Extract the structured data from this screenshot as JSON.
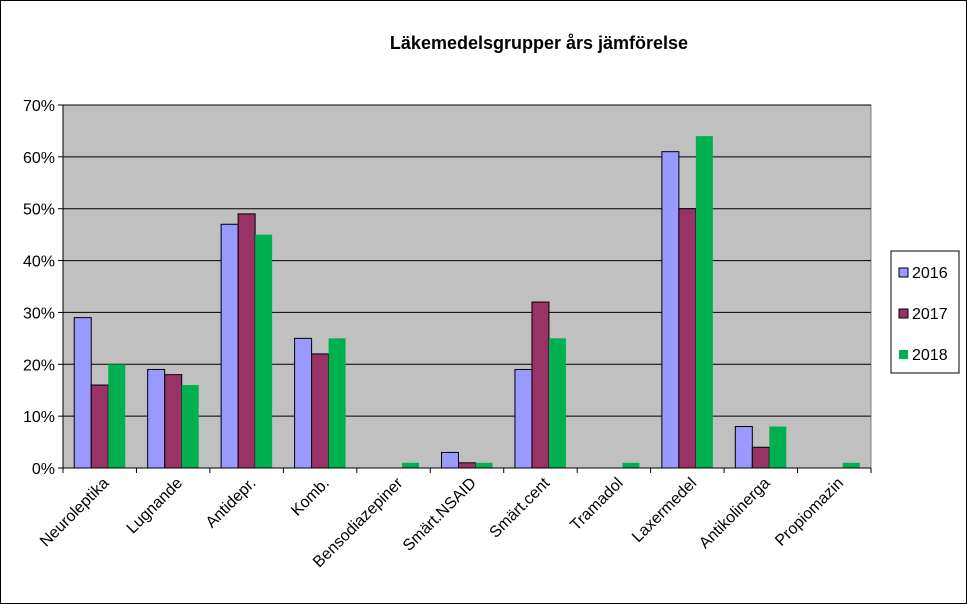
{
  "chart_data": {
    "type": "bar",
    "title": "Läkemedelsgrupper års jämförelse",
    "xlabel": "",
    "ylabel": "",
    "ylim": [
      0,
      70
    ],
    "yticks": [
      0,
      10,
      20,
      30,
      40,
      50,
      60,
      70
    ],
    "ytick_labels": [
      "0%",
      "10%",
      "20%",
      "30%",
      "40%",
      "50%",
      "60%",
      "70%"
    ],
    "grid": true,
    "legend_position": "right",
    "categories": [
      "Neuroleptika",
      "Lugnande",
      "Antidepr.",
      "Komb.",
      "Bensodiazepiner",
      "Smärt.NSAID",
      "Smärt.cent",
      "Tramadol",
      "Laxermedel",
      "Antikolinerga",
      "Propiomazin"
    ],
    "series": [
      {
        "name": "2016",
        "color": "#9999ff",
        "values": [
          29,
          19,
          47,
          25,
          0,
          3,
          19,
          0,
          61,
          8,
          0
        ]
      },
      {
        "name": "2017",
        "color": "#993366",
        "values": [
          16,
          18,
          49,
          22,
          0,
          1,
          32,
          0,
          50,
          4,
          0
        ]
      },
      {
        "name": "2018",
        "color": "#00b050",
        "values": [
          20,
          16,
          45,
          25,
          1,
          1,
          25,
          1,
          64,
          8,
          1
        ]
      }
    ],
    "plot_background": "#c0c0c0"
  }
}
